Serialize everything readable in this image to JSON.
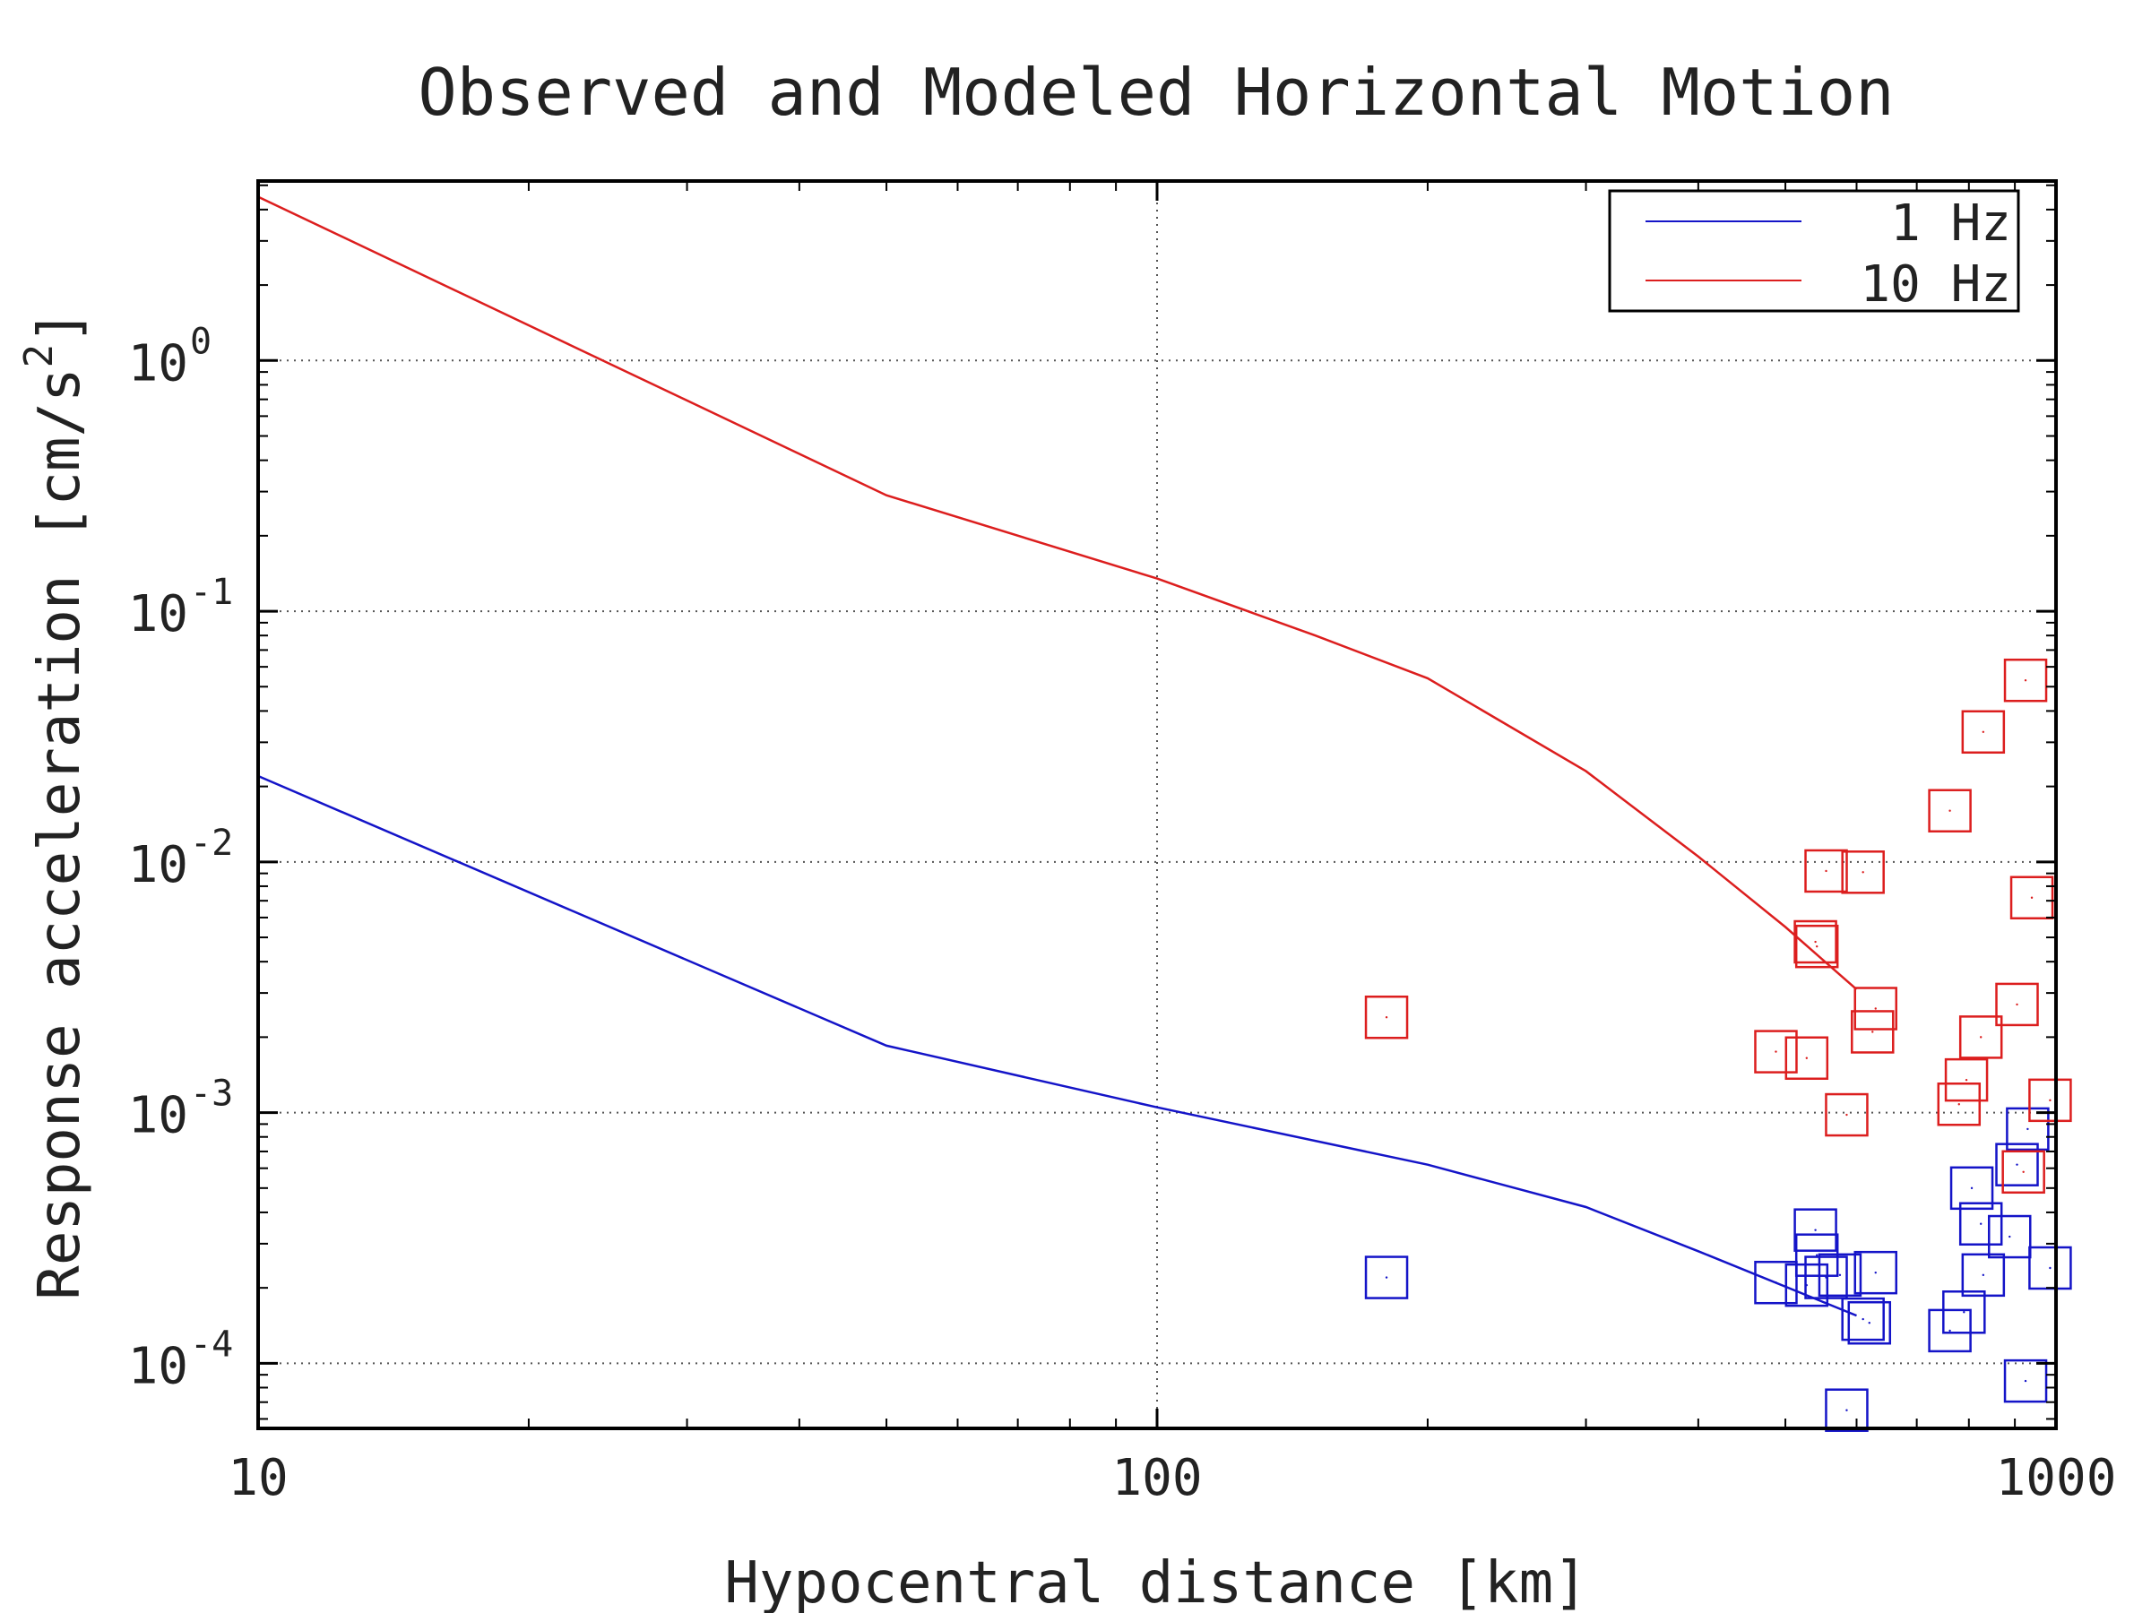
{
  "chart_data": {
    "type": "scatter",
    "title": "Observed and Modeled Horizontal Motion",
    "xlabel": "Hypocentral distance [km]",
    "ylabel": "Response acceleration [cm/s",
    "ylabel_superscript": "2",
    "ylabel_close": "]",
    "x_scale": "log",
    "y_scale": "log",
    "xlim": [
      10,
      1000
    ],
    "ylim": [
      5.5e-05,
      5.2
    ],
    "x_ticks": [
      {
        "value": 10,
        "label": "10"
      },
      {
        "value": 100,
        "label": "100"
      },
      {
        "value": 1000,
        "label": "1000"
      }
    ],
    "y_ticks": [
      {
        "value": 0.0001,
        "label": "10",
        "exp": "-4"
      },
      {
        "value": 0.001,
        "label": "10",
        "exp": "-3"
      },
      {
        "value": 0.01,
        "label": "10",
        "exp": "-2"
      },
      {
        "value": 0.1,
        "label": "10",
        "exp": "-1"
      },
      {
        "value": 1,
        "label": "10",
        "exp": "0"
      }
    ],
    "grid": true,
    "legend_position": "top-right",
    "series": [
      {
        "name": "1 Hz",
        "color": "#1414c8",
        "line": [
          [
            10,
            0.022
          ],
          [
            50,
            0.00185
          ],
          [
            100,
            0.00105
          ],
          [
            200,
            0.00062
          ],
          [
            300,
            0.00042
          ],
          [
            400,
            0.00028
          ],
          [
            600,
            0.000155
          ]
        ],
        "points": [
          [
            180,
            0.00022
          ],
          [
            488,
            0.00021
          ],
          [
            528,
            0.000205
          ],
          [
            540,
            0.00034
          ],
          [
            542,
            0.00027
          ],
          [
            555,
            0.00022
          ],
          [
            575,
            0.000225
          ],
          [
            585,
            6.5e-05
          ],
          [
            610,
            0.00015
          ],
          [
            620,
            0.000145
          ],
          [
            630,
            0.00023
          ],
          [
            762,
            0.000135
          ],
          [
            790,
            0.00016
          ],
          [
            806,
            0.0005
          ],
          [
            825,
            0.00036
          ],
          [
            830,
            0.000225
          ],
          [
            888,
            0.00032
          ],
          [
            905,
            0.00062
          ],
          [
            925,
            8.5e-05
          ],
          [
            930,
            0.00086
          ],
          [
            985,
            0.00024
          ]
        ]
      },
      {
        "name": "10 Hz",
        "color": "#dc1e1e",
        "line": [
          [
            10,
            4.5
          ],
          [
            50,
            0.29
          ],
          [
            100,
            0.135
          ],
          [
            150,
            0.08
          ],
          [
            200,
            0.054
          ],
          [
            300,
            0.023
          ],
          [
            400,
            0.0105
          ],
          [
            500,
            0.0055
          ],
          [
            600,
            0.0031
          ]
        ],
        "points": [
          [
            180,
            0.0024
          ],
          [
            488,
            0.00175
          ],
          [
            528,
            0.00165
          ],
          [
            540,
            0.0048
          ],
          [
            542,
            0.0046
          ],
          [
            555,
            0.0092
          ],
          [
            585,
            0.00098
          ],
          [
            610,
            0.0091
          ],
          [
            625,
            0.0021
          ],
          [
            630,
            0.0026
          ],
          [
            762,
            0.016
          ],
          [
            780,
            0.00108
          ],
          [
            795,
            0.00135
          ],
          [
            825,
            0.002
          ],
          [
            830,
            0.033
          ],
          [
            905,
            0.0027
          ],
          [
            920,
            0.00058
          ],
          [
            925,
            0.053
          ],
          [
            940,
            0.0072
          ],
          [
            985,
            0.00112
          ]
        ]
      }
    ]
  }
}
